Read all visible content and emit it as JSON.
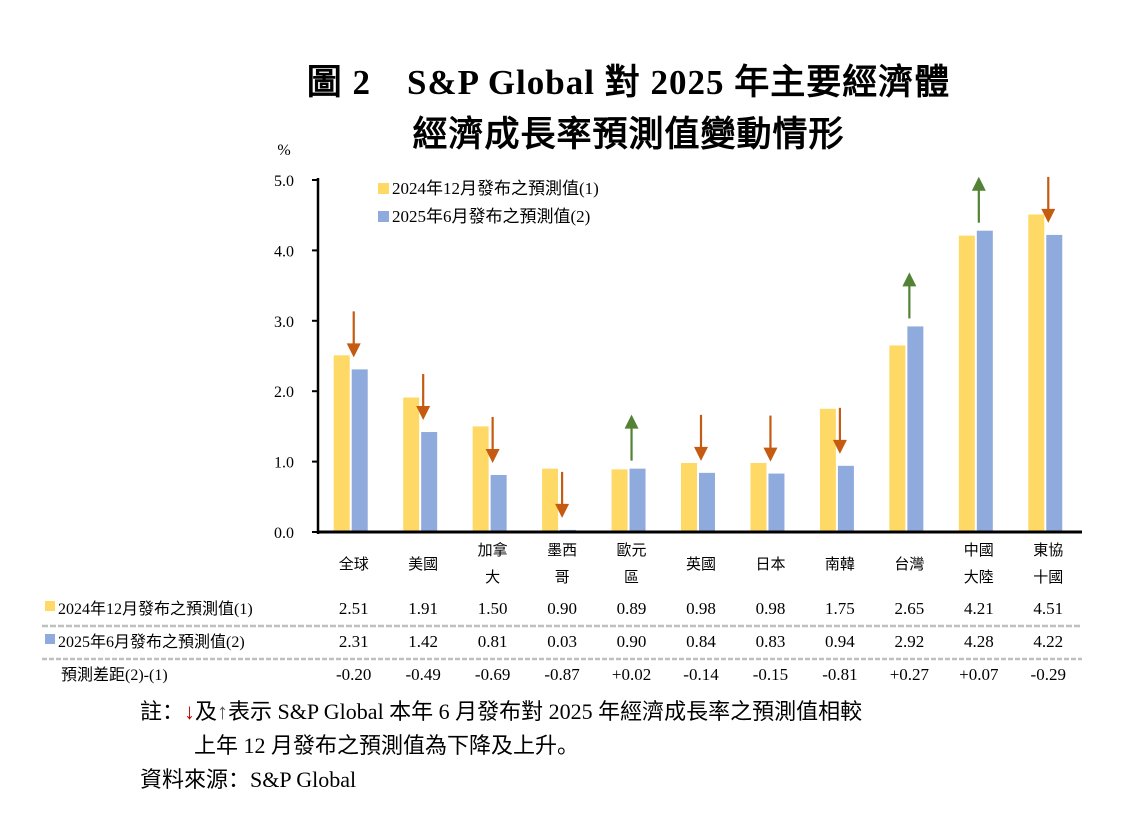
{
  "title_line1": "圖 2　S&P Global 對 2025 年主要經濟體",
  "title_line2": "經濟成長率預測值變動情形",
  "colors": {
    "series1": "#FFD966",
    "series2": "#8FAADC",
    "down_arrow": "#C55A11",
    "up_arrow": "#548235",
    "axis": "#000000",
    "table_rule": "#BFBFBF"
  },
  "chart_data": {
    "type": "bar",
    "title": "S&P Global 對 2025 年主要經濟體經濟成長率預測值變動情形",
    "ylabel": "%",
    "ylim": [
      0,
      5
    ],
    "yticks": [
      "0.0",
      "1.0",
      "2.0",
      "3.0",
      "4.0",
      "5.0"
    ],
    "ytick_values": [
      0,
      1,
      2,
      3,
      4,
      5
    ],
    "legend_position": "top-left",
    "categories": [
      [
        "全球"
      ],
      [
        "美國"
      ],
      [
        "加拿",
        "大"
      ],
      [
        "墨西",
        "哥"
      ],
      [
        "歐元",
        "區"
      ],
      [
        "英國"
      ],
      [
        "日本"
      ],
      [
        "南韓"
      ],
      [
        "台灣"
      ],
      [
        "中國",
        "大陸"
      ],
      [
        "東協",
        "十國"
      ]
    ],
    "series": [
      {
        "name": "2024年12月發布之預測值(1)",
        "values": [
          2.51,
          1.91,
          1.5,
          0.9,
          0.89,
          0.98,
          0.98,
          1.75,
          2.65,
          4.21,
          4.51
        ],
        "labels": [
          "2.51",
          "1.91",
          "1.50",
          "0.90",
          "0.89",
          "0.98",
          "0.98",
          "1.75",
          "2.65",
          "4.21",
          "4.51"
        ]
      },
      {
        "name": "2025年6月發布之預測值(2)",
        "values": [
          2.31,
          1.42,
          0.81,
          0.03,
          0.9,
          0.84,
          0.83,
          0.94,
          2.92,
          4.28,
          4.22
        ],
        "labels": [
          "2.31",
          "1.42",
          "0.81",
          "0.03",
          "0.90",
          "0.84",
          "0.83",
          "0.94",
          "2.92",
          "4.28",
          "4.22"
        ]
      }
    ],
    "difference": {
      "name": "預測差距(2)-(1)",
      "labels": [
        "-0.20",
        "-0.49",
        "-0.69",
        "-0.87",
        "+0.02",
        "-0.14",
        "-0.15",
        "-0.81",
        "+0.27",
        "+0.07",
        "-0.29"
      ],
      "direction": [
        "down",
        "down",
        "down",
        "down",
        "up",
        "down",
        "down",
        "down",
        "up",
        "up",
        "down"
      ]
    }
  },
  "notes": {
    "note_prefix": "註：",
    "down_glyph": "↓",
    "and": "及",
    "up_glyph": "↑",
    "note_line1_rest": "表示 S&P Global 本年 6 月發布對 2025 年經濟成長率之預測值相較",
    "note_line2": "上年 12 月發布之預測值為下降及上升。",
    "source": "資料來源：S&P Global"
  }
}
